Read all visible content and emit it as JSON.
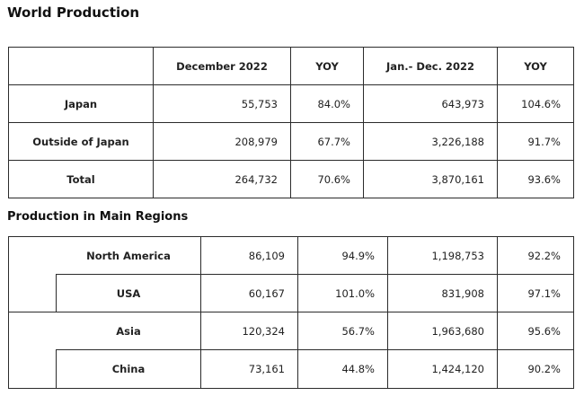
{
  "world": {
    "title": "World Production",
    "headers": [
      "",
      "December 2022",
      "YOY",
      "Jan.- Dec. 2022",
      "YOY"
    ],
    "rows": [
      {
        "label": "Japan",
        "dec": "55,753",
        "dec_yoy": "84.0%",
        "ytd": "643,973",
        "ytd_yoy": "104.6%"
      },
      {
        "label": "Outside of Japan",
        "dec": "208,979",
        "dec_yoy": "67.7%",
        "ytd": "3,226,188",
        "ytd_yoy": "91.7%"
      },
      {
        "label": "Total",
        "dec": "264,732",
        "dec_yoy": "70.6%",
        "ytd": "3,870,161",
        "ytd_yoy": "93.6%"
      }
    ]
  },
  "regions": {
    "title": "Production in Main Regions",
    "rows": [
      {
        "label": "North America",
        "dec": "86,109",
        "dec_yoy": "94.9%",
        "ytd": "1,198,753",
        "ytd_yoy": "92.2%"
      },
      {
        "label": "USA",
        "dec": "60,167",
        "dec_yoy": "101.0%",
        "ytd": "831,908",
        "ytd_yoy": "97.1%"
      },
      {
        "label": "Asia",
        "dec": "120,324",
        "dec_yoy": "56.7%",
        "ytd": "1,963,680",
        "ytd_yoy": "95.6%"
      },
      {
        "label": "China",
        "dec": "73,161",
        "dec_yoy": "44.8%",
        "ytd": "1,424,120",
        "ytd_yoy": "90.2%"
      }
    ]
  }
}
